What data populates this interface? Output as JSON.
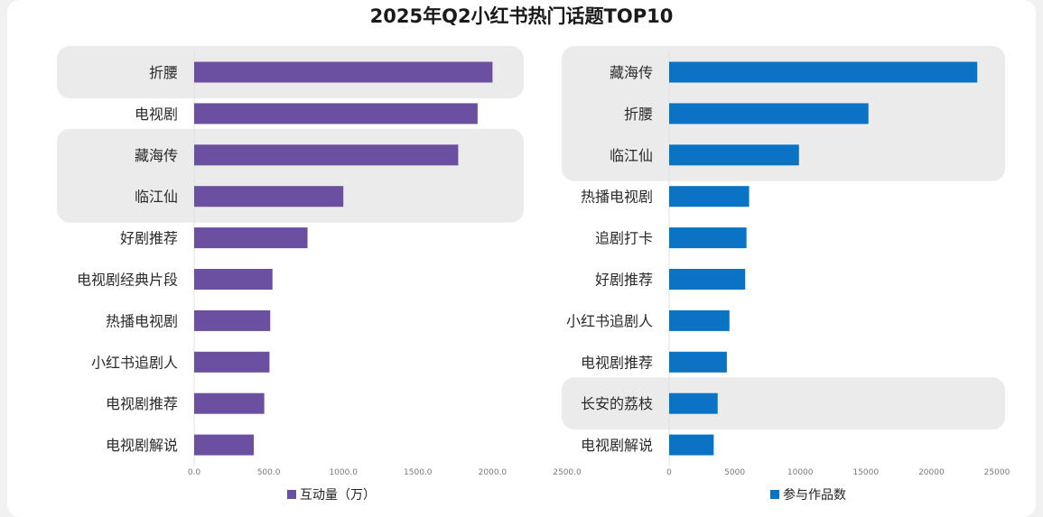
{
  "title": "2025年Q2小红书热门话题TOP10",
  "colors": {
    "left_series": "#6b4fa0",
    "right_series": "#0a73c4",
    "highlight_band": "#ebebeb"
  },
  "chart_data": [
    {
      "type": "bar",
      "orientation": "horizontal",
      "categories": [
        "折腰",
        "电视剧",
        "藏海传",
        "临江仙",
        "好剧推荐",
        "电视剧经典片段",
        "热播电视剧",
        "小红书追剧人",
        "电视剧推荐",
        "电视剧解说"
      ],
      "series": [
        {
          "name": "互动量（万）",
          "values": [
            2000,
            1900,
            1770,
            1000,
            760,
            525,
            510,
            505,
            470,
            400
          ]
        }
      ],
      "xlim": [
        0,
        2500
      ],
      "xticks": [
        "0.0",
        "500.0",
        "1000.0",
        "1500.0",
        "2000.0",
        "2500.0"
      ],
      "highlighted_categories": [
        "折腰",
        "藏海传",
        "临江仙"
      ],
      "legend": "bottom"
    },
    {
      "type": "bar",
      "orientation": "horizontal",
      "categories": [
        "藏海传",
        "折腰",
        "临江仙",
        "热播电视剧",
        "追剧打卡",
        "好剧推荐",
        "小红书追剧人",
        "电视剧推荐",
        "长安的荔枝",
        "电视剧解说"
      ],
      "series": [
        {
          "name": "参与作品数",
          "values": [
            23500,
            15200,
            9900,
            6100,
            5900,
            5800,
            4600,
            4400,
            3700,
            3400
          ]
        }
      ],
      "xlim": [
        0,
        25000
      ],
      "xticks": [
        "0",
        "5000",
        "10000",
        "15000",
        "20000",
        "25000"
      ],
      "highlighted_categories": [
        "藏海传",
        "折腰",
        "临江仙",
        "长安的荔枝"
      ],
      "legend": "bottom"
    }
  ]
}
